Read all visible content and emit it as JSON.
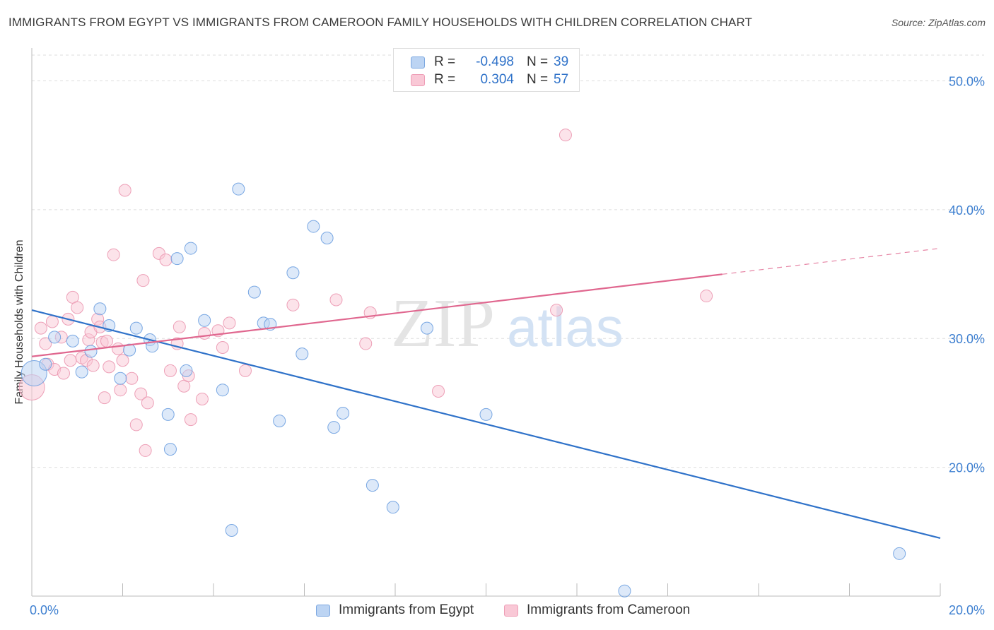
{
  "title": "IMMIGRANTS FROM EGYPT VS IMMIGRANTS FROM CAMEROON FAMILY HOUSEHOLDS WITH CHILDREN CORRELATION CHART",
  "source": "Source: ZipAtlas.com",
  "watermark": {
    "zip": "ZIP",
    "atlas": "atlas"
  },
  "colors": {
    "blue_fill": "#bcd4f3",
    "blue_stroke": "#6b9fe0",
    "blue_line": "#2f72c9",
    "pink_fill": "#f9c8d6",
    "pink_stroke": "#eb97b0",
    "pink_line": "#e0678f",
    "grid": "#dddddd",
    "tick_label": "#3d7fd0"
  },
  "legend": {
    "r_label": "R =",
    "n_label": "N =",
    "egypt": {
      "r": "-0.498",
      "n": "39"
    },
    "cameroon": {
      "r": "0.304",
      "n": "57"
    }
  },
  "chart_data": {
    "type": "scatter",
    "title": "IMMIGRANTS FROM EGYPT VS IMMIGRANTS FROM CAMEROON FAMILY HOUSEHOLDS WITH CHILDREN CORRELATION CHART",
    "xlabel": "",
    "ylabel": "Family Households with Children",
    "xlim": [
      0,
      20
    ],
    "ylim": [
      10,
      52
    ],
    "x_tick_labels": [
      {
        "value": 0,
        "label": "0.0%"
      },
      {
        "value": 20,
        "label": "20.0%"
      }
    ],
    "y_tick_labels": [
      {
        "value": 20,
        "label": "20.0%"
      },
      {
        "value": 30,
        "label": "30.0%"
      },
      {
        "value": 40,
        "label": "40.0%"
      },
      {
        "value": 50,
        "label": "50.0%"
      }
    ],
    "grid": true,
    "legend_position": "bottom",
    "series": [
      {
        "name": "Immigrants from Egypt",
        "color": "blue",
        "trend": {
          "x0": 0,
          "y0": 32.2,
          "x1": 20,
          "y1": 14.5,
          "dash_from": null
        },
        "points": [
          {
            "x": 0.05,
            "y": 27.3,
            "big": true
          },
          {
            "x": 0.3,
            "y": 28.0
          },
          {
            "x": 0.5,
            "y": 30.1
          },
          {
            "x": 0.9,
            "y": 29.8
          },
          {
            "x": 1.1,
            "y": 27.4
          },
          {
            "x": 1.3,
            "y": 29.0
          },
          {
            "x": 1.5,
            "y": 32.3
          },
          {
            "x": 1.7,
            "y": 31.0
          },
          {
            "x": 1.95,
            "y": 26.9
          },
          {
            "x": 2.15,
            "y": 29.1
          },
          {
            "x": 2.3,
            "y": 30.8
          },
          {
            "x": 2.6,
            "y": 29.9
          },
          {
            "x": 2.65,
            "y": 29.4
          },
          {
            "x": 3.0,
            "y": 24.1
          },
          {
            "x": 3.05,
            "y": 21.4
          },
          {
            "x": 3.2,
            "y": 36.2
          },
          {
            "x": 3.4,
            "y": 27.5
          },
          {
            "x": 3.5,
            "y": 37.0
          },
          {
            "x": 3.8,
            "y": 31.4
          },
          {
            "x": 4.2,
            "y": 26.0
          },
          {
            "x": 4.4,
            "y": 15.1
          },
          {
            "x": 4.55,
            "y": 41.6
          },
          {
            "x": 4.9,
            "y": 33.6
          },
          {
            "x": 5.1,
            "y": 31.2
          },
          {
            "x": 5.25,
            "y": 31.1
          },
          {
            "x": 5.45,
            "y": 23.6
          },
          {
            "x": 5.75,
            "y": 35.1
          },
          {
            "x": 5.95,
            "y": 28.8
          },
          {
            "x": 6.2,
            "y": 38.7
          },
          {
            "x": 6.5,
            "y": 37.8
          },
          {
            "x": 6.65,
            "y": 23.1
          },
          {
            "x": 6.85,
            "y": 24.2
          },
          {
            "x": 7.5,
            "y": 18.6
          },
          {
            "x": 7.95,
            "y": 16.9
          },
          {
            "x": 8.7,
            "y": 30.8
          },
          {
            "x": 10.0,
            "y": 24.1
          },
          {
            "x": 13.05,
            "y": 10.4
          },
          {
            "x": 19.1,
            "y": 13.3
          }
        ]
      },
      {
        "name": "Immigrants from Cameroon",
        "color": "pink",
        "trend": {
          "x0": 0,
          "y0": 28.6,
          "x1": 20,
          "y1": 37.0,
          "dash_from": 15.2
        },
        "points": [
          {
            "x": 0.0,
            "y": 26.2,
            "big": true
          },
          {
            "x": 0.2,
            "y": 30.8
          },
          {
            "x": 0.3,
            "y": 29.6
          },
          {
            "x": 0.35,
            "y": 28.0
          },
          {
            "x": 0.45,
            "y": 31.3
          },
          {
            "x": 0.5,
            "y": 27.6
          },
          {
            "x": 0.65,
            "y": 30.1
          },
          {
            "x": 0.7,
            "y": 27.3
          },
          {
            "x": 0.8,
            "y": 31.5
          },
          {
            "x": 0.85,
            "y": 28.3
          },
          {
            "x": 0.9,
            "y": 33.2
          },
          {
            "x": 1.0,
            "y": 32.4
          },
          {
            "x": 1.1,
            "y": 28.5
          },
          {
            "x": 1.2,
            "y": 28.3
          },
          {
            "x": 1.25,
            "y": 29.9
          },
          {
            "x": 1.3,
            "y": 30.5
          },
          {
            "x": 1.35,
            "y": 27.9
          },
          {
            "x": 1.45,
            "y": 31.5
          },
          {
            "x": 1.5,
            "y": 30.9
          },
          {
            "x": 1.55,
            "y": 29.7
          },
          {
            "x": 1.6,
            "y": 25.4
          },
          {
            "x": 1.65,
            "y": 29.8
          },
          {
            "x": 1.7,
            "y": 27.8
          },
          {
            "x": 1.8,
            "y": 36.5
          },
          {
            "x": 1.9,
            "y": 29.2
          },
          {
            "x": 1.95,
            "y": 26.0
          },
          {
            "x": 2.0,
            "y": 28.3
          },
          {
            "x": 2.05,
            "y": 41.5
          },
          {
            "x": 2.2,
            "y": 26.9
          },
          {
            "x": 2.3,
            "y": 23.3
          },
          {
            "x": 2.4,
            "y": 25.7
          },
          {
            "x": 2.45,
            "y": 34.5
          },
          {
            "x": 2.5,
            "y": 21.3
          },
          {
            "x": 2.55,
            "y": 25.0
          },
          {
            "x": 2.8,
            "y": 36.6
          },
          {
            "x": 2.95,
            "y": 36.1
          },
          {
            "x": 3.05,
            "y": 27.5
          },
          {
            "x": 3.2,
            "y": 29.6
          },
          {
            "x": 3.25,
            "y": 30.9
          },
          {
            "x": 3.35,
            "y": 26.3
          },
          {
            "x": 3.45,
            "y": 27.1
          },
          {
            "x": 3.5,
            "y": 23.7
          },
          {
            "x": 3.75,
            "y": 25.3
          },
          {
            "x": 3.8,
            "y": 30.4
          },
          {
            "x": 4.1,
            "y": 30.6
          },
          {
            "x": 4.2,
            "y": 29.3
          },
          {
            "x": 4.35,
            "y": 31.2
          },
          {
            "x": 4.7,
            "y": 27.5
          },
          {
            "x": 5.75,
            "y": 32.6
          },
          {
            "x": 6.7,
            "y": 33.0
          },
          {
            "x": 7.35,
            "y": 29.6
          },
          {
            "x": 7.45,
            "y": 32.0
          },
          {
            "x": 8.95,
            "y": 25.9
          },
          {
            "x": 11.55,
            "y": 32.2
          },
          {
            "x": 11.75,
            "y": 45.8
          },
          {
            "x": 14.85,
            "y": 33.3
          }
        ]
      }
    ]
  },
  "bottom_legend": {
    "egypt": "Immigrants from Egypt",
    "cameroon": "Immigrants from Cameroon"
  }
}
